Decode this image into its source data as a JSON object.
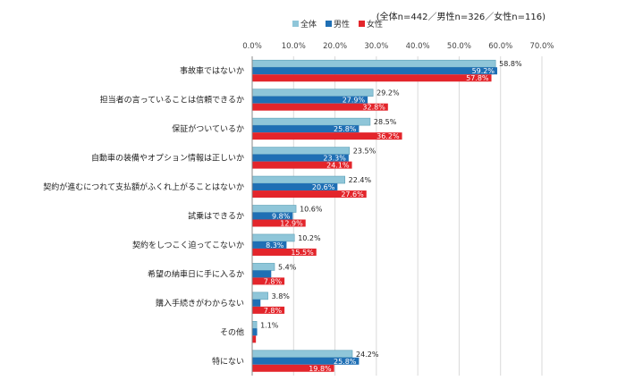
{
  "note": "(全体n=442／男性n=326／女性n=116)",
  "chart_data": {
    "type": "bar",
    "orientation": "horizontal",
    "categories": [
      "事故車ではないか",
      "担当者の言っていることは信頼できるか",
      "保証がついているか",
      "自動車の装備やオプション情報は正しいか",
      "契約が進むにつれて支払額がふくれ上がることはないか",
      "試乗はできるか",
      "契約をしつこく迫ってこないか",
      "希望の納車日に手に入るか",
      "購入手続きがわからない",
      "その他",
      "特にない"
    ],
    "series": [
      {
        "name": "全体",
        "color": "#8fc6d9",
        "values": [
          58.8,
          29.2,
          28.5,
          23.5,
          22.4,
          10.6,
          10.2,
          5.4,
          3.8,
          1.1,
          24.2
        ],
        "labels": [
          "58.8%",
          "29.2%",
          "28.5%",
          "23.5%",
          "22.4%",
          "10.6%",
          "10.2%",
          "5.4%",
          "3.8%",
          "1.1%",
          "24.2%"
        ]
      },
      {
        "name": "男性",
        "color": "#1f6fb4",
        "values": [
          59.2,
          27.9,
          25.8,
          23.3,
          20.6,
          9.8,
          8.3,
          4.6,
          2.0,
          1.2,
          25.8
        ],
        "labels": [
          "59.2%",
          "27.9%",
          "25.8%",
          "23.3%",
          "20.6%",
          "9.8%",
          "8.3%",
          "4.6%",
          "2",
          "",
          "25.8%"
        ]
      },
      {
        "name": "女性",
        "color": "#e3252b",
        "values": [
          57.8,
          32.8,
          36.2,
          24.1,
          27.6,
          12.9,
          15.5,
          7.8,
          7.8,
          0.9,
          19.8
        ],
        "labels": [
          "57.8%",
          "32.8%",
          "36.2%",
          "24.1%",
          "27.6%",
          "12.9%",
          "15.5%",
          "7.8%",
          "7.8%",
          "",
          "19.8%"
        ]
      }
    ],
    "xlim": [
      0,
      70
    ],
    "xticks": [
      "0.0%",
      "10.0%",
      "20.0%",
      "30.0%",
      "40.0%",
      "50.0%",
      "60.0%",
      "70.0%"
    ],
    "legend_position": "top",
    "grid": true
  }
}
